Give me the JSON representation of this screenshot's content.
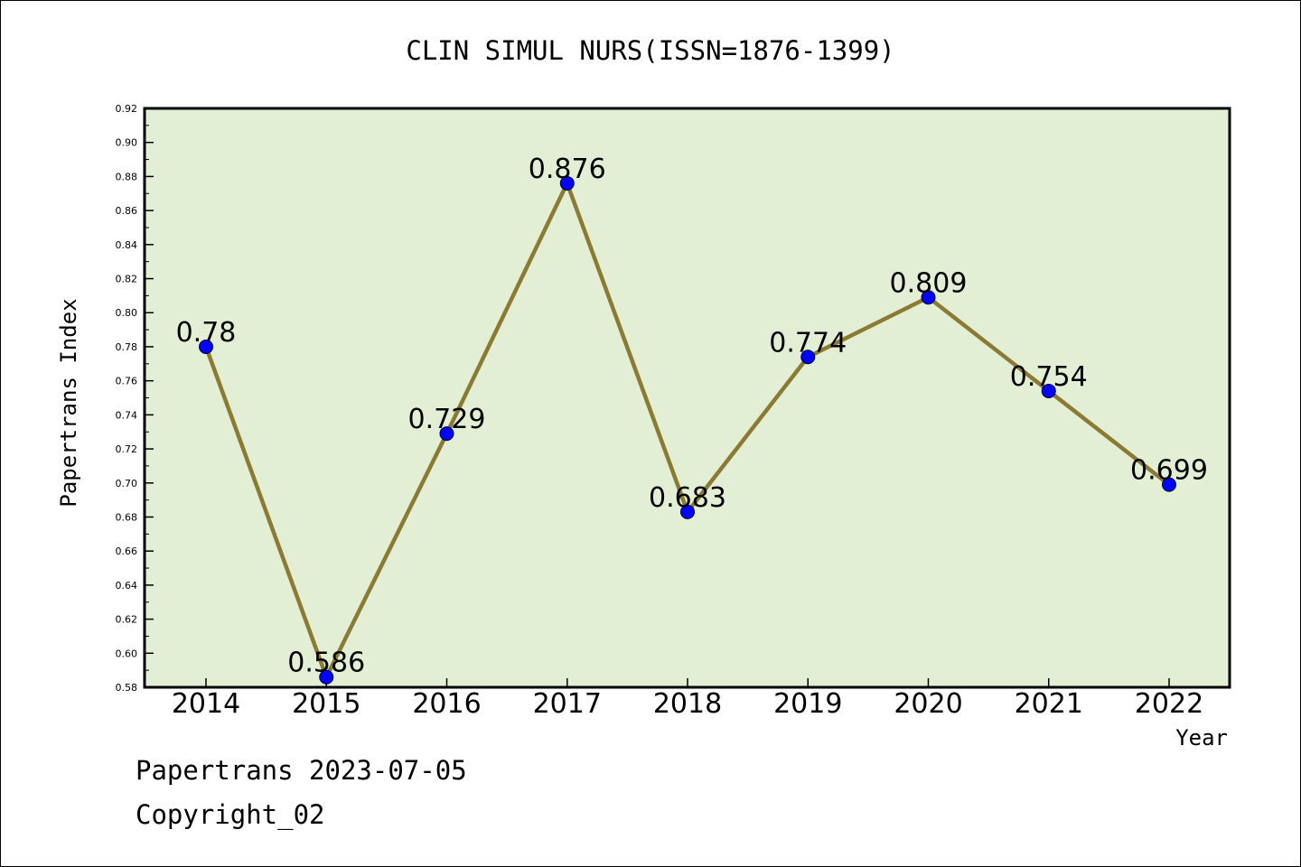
{
  "chart_data": {
    "type": "line",
    "title": "CLIN SIMUL NURS(ISSN=1876-1399)",
    "xlabel": "Year",
    "ylabel": "Papertrans Index",
    "categories": [
      "2014",
      "2015",
      "2016",
      "2017",
      "2018",
      "2019",
      "2020",
      "2021",
      "2022"
    ],
    "values": [
      0.78,
      0.586,
      0.729,
      0.876,
      0.683,
      0.774,
      0.809,
      0.754,
      0.699
    ],
    "data_labels": [
      "0.78",
      "0.586",
      "0.729",
      "0.876",
      "0.683",
      "0.774",
      "0.809",
      "0.754",
      "0.699"
    ],
    "ylim": [
      0.58,
      0.92
    ],
    "yticks": [
      "0.58",
      "0.60",
      "0.62",
      "0.64",
      "0.66",
      "0.68",
      "0.70",
      "0.72",
      "0.74",
      "0.76",
      "0.78",
      "0.80",
      "0.82",
      "0.84",
      "0.86",
      "0.88",
      "0.90",
      "0.92"
    ],
    "grid": false,
    "colors": {
      "plot_background": "#e2efd5",
      "line": "#8b7a32",
      "marker": "#0000ff"
    }
  },
  "footer": {
    "date_text": "Papertrans 2023-07-05",
    "copyright_text": "Copyright_02"
  }
}
